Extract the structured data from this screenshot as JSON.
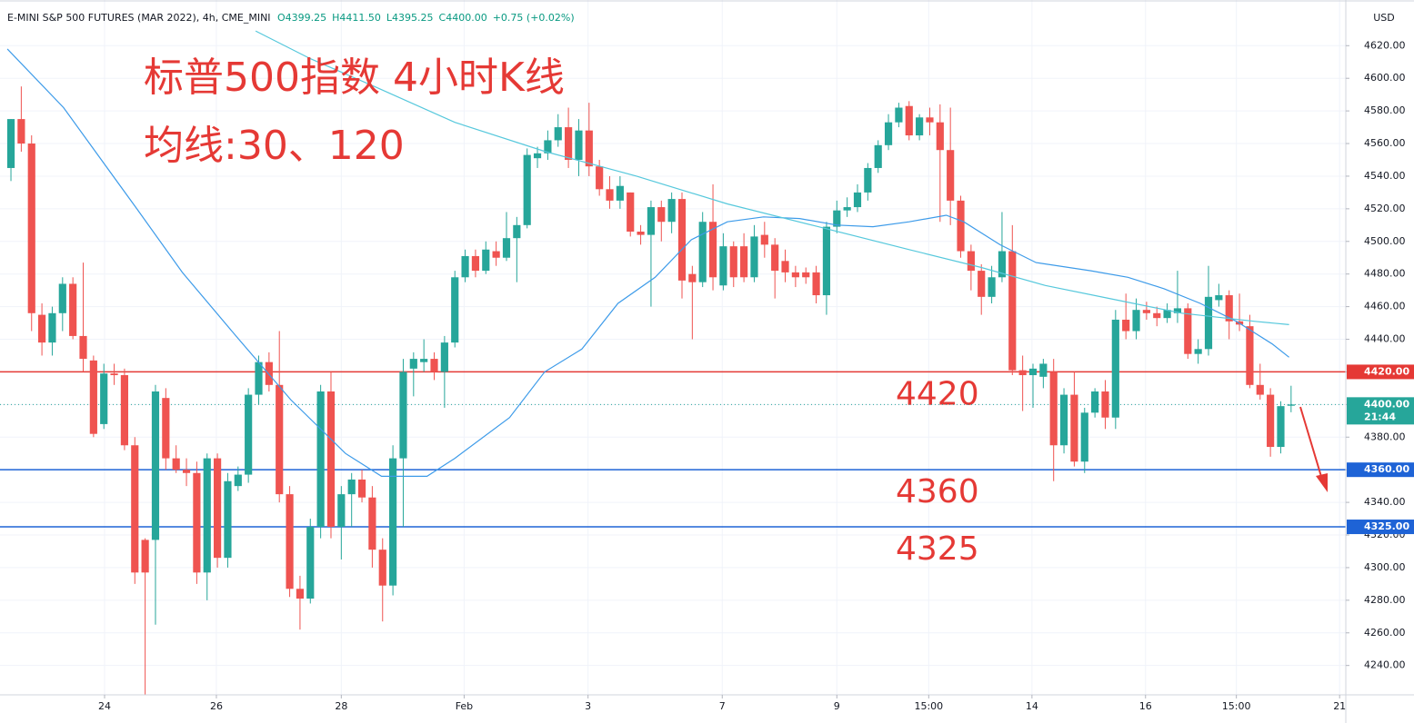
{
  "chart_data": {
    "type": "candlestick",
    "header": "E-MINI S&P 500 FUTURES (MAR 2022), 4h, CME_MINI",
    "header_ohlc": [
      "O4399.25",
      "H4411.50",
      "L4395.25",
      "C4400.00"
    ],
    "header_change": "+0.75 (+0.02%)",
    "title": "标普500指数 4小时K线",
    "subtitle": "均线:30、120",
    "currency": "USD",
    "up_color": "#26a69a",
    "down_color": "#ef5350",
    "open": [
      4545,
      4575,
      4560,
      4455,
      4438,
      4456,
      4474,
      4442,
      4427,
      4388,
      4419,
      4418,
      4375,
      4317,
      4317,
      4404,
      4367,
      4360,
      4358,
      4297,
      4367,
      4306,
      4350,
      4357,
      4406,
      4426,
      4412,
      4345,
      4287,
      4281,
      4325,
      4408,
      4325,
      4345,
      4354,
      4343,
      4311,
      4289,
      4367,
      4422,
      4426,
      4428,
      4420,
      4438,
      4478,
      4491,
      4482,
      4494,
      4490,
      4502,
      4510,
      4551,
      4554,
      4562,
      4570,
      4550,
      4568,
      4546,
      4532,
      4525,
      4530,
      4506,
      4504,
      4521,
      4512,
      4526,
      4480,
      4475,
      4512,
      4473,
      4497,
      4497,
      4478,
      4504,
      4498,
      4488,
      4481,
      4481,
      4481,
      4467,
      4509,
      4519,
      4521,
      4530,
      4545,
      4559,
      4573,
      4583,
      4565,
      4576,
      4573,
      4556,
      4525,
      4494,
      4482,
      4466,
      4478,
      4494,
      4421,
      4418,
      4417,
      4420,
      4375,
      4406,
      4365,
      4395,
      4408,
      4392,
      4452,
      4445,
      4458,
      4456,
      4453,
      4456,
      4459,
      4431,
      4434,
      4464,
      4467,
      4451,
      4448,
      4412,
      4406,
      4374,
      4399.25
    ],
    "high": [
      4575,
      4595,
      4565,
      4462,
      4460,
      4478,
      4478,
      4487,
      4430,
      4425,
      4425,
      4422,
      4380,
      4318,
      4412,
      4410,
      4375,
      4367,
      4365,
      4370,
      4370,
      4358,
      4362,
      4410,
      4430,
      4432,
      4445,
      4350,
      4295,
      4330,
      4412,
      4420,
      4350,
      4358,
      4360,
      4350,
      4318,
      4375,
      4428,
      4432,
      4440,
      4432,
      4442,
      4482,
      4495,
      4495,
      4500,
      4500,
      4518,
      4515,
      4557,
      4558,
      4568,
      4578,
      4582,
      4575,
      4585,
      4550,
      4540,
      4540,
      4530,
      4510,
      4525,
      4525,
      4530,
      4530,
      4485,
      4518,
      4535,
      4505,
      4500,
      4505,
      4510,
      4512,
      4502,
      4495,
      4485,
      4484,
      4485,
      4512,
      4525,
      4527,
      4535,
      4548,
      4562,
      4578,
      4585,
      4586,
      4578,
      4582,
      4584,
      4582,
      4528,
      4498,
      4486,
      4485,
      4518,
      4510,
      4430,
      4425,
      4428,
      4428,
      4410,
      4420,
      4398,
      4410,
      4415,
      4458,
      4468,
      4465,
      4463,
      4460,
      4462,
      4482,
      4462,
      4440,
      4485,
      4474,
      4470,
      4468,
      4455,
      4425,
      4410,
      4402,
      4411.5
    ],
    "low": [
      4537,
      4555,
      4445,
      4430,
      4430,
      4445,
      4440,
      4420,
      4380,
      4385,
      4412,
      4372,
      4290,
      4222,
      4265,
      4360,
      4358,
      4350,
      4290,
      4280,
      4300,
      4300,
      4347,
      4352,
      4400,
      4408,
      4340,
      4282,
      4262,
      4278,
      4318,
      4318,
      4305,
      4325,
      4340,
      4300,
      4267,
      4283,
      4325,
      4405,
      4420,
      4415,
      4398,
      4435,
      4475,
      4478,
      4480,
      4485,
      4488,
      4475,
      4508,
      4545,
      4550,
      4558,
      4545,
      4540,
      4540,
      4528,
      4520,
      4520,
      4503,
      4498,
      4460,
      4500,
      4505,
      4465,
      4440,
      4472,
      4470,
      4470,
      4472,
      4475,
      4475,
      4490,
      4465,
      4475,
      4472,
      4474,
      4462,
      4455,
      4505,
      4515,
      4518,
      4525,
      4542,
      4556,
      4570,
      4562,
      4562,
      4565,
      4512,
      4510,
      4490,
      4470,
      4455,
      4462,
      4475,
      4418,
      4396,
      4398,
      4410,
      4353,
      4370,
      4362,
      4358,
      4392,
      4385,
      4385,
      4440,
      4440,
      4452,
      4448,
      4450,
      4450,
      4428,
      4425,
      4430,
      4460,
      4440,
      4445,
      4410,
      4403,
      4368,
      4370,
      4395.25
    ],
    "close": [
      4575,
      4560,
      4456,
      4438,
      4456,
      4474,
      4442,
      4428,
      4382,
      4419,
      4418,
      4375,
      4297,
      4297,
      4408,
      4367,
      4360,
      4358,
      4297,
      4367,
      4306,
      4353,
      4357,
      4406,
      4426,
      4412,
      4345,
      4287,
      4281,
      4325,
      4408,
      4325,
      4345,
      4354,
      4343,
      4311,
      4289,
      4367,
      4420,
      4428,
      4428,
      4420,
      4438,
      4478,
      4491,
      4482,
      4495,
      4490,
      4502,
      4510,
      4553,
      4554,
      4562,
      4570,
      4550,
      4568,
      4546,
      4532,
      4525,
      4534,
      4506,
      4504,
      4521,
      4512,
      4526,
      4476,
      4475,
      4512,
      4478,
      4497,
      4478,
      4478,
      4503,
      4498,
      4482,
      4481,
      4478,
      4478,
      4467,
      4509,
      4519,
      4521,
      4530,
      4545,
      4559,
      4573,
      4582,
      4565,
      4576,
      4573,
      4556,
      4525,
      4494,
      4482,
      4466,
      4478,
      4494,
      4421,
      4418,
      4422,
      4425,
      4375,
      4406,
      4365,
      4395,
      4408,
      4392,
      4452,
      4445,
      4458,
      4456,
      4453,
      4458,
      4459,
      4431,
      4434,
      4466,
      4467,
      4451,
      4449,
      4412,
      4406,
      4374,
      4399,
      4400
    ],
    "series": [
      {
        "type": "line",
        "color": "#3d9be9",
        "x": [
          -0.35,
          5.1,
          12.2,
          16.6,
          21.8,
          27.1,
          32.4,
          35.9,
          40.3,
          43,
          48.3,
          51.7,
          55.3,
          58.8,
          62.4,
          65.9,
          69.4,
          72.9,
          76.4,
          80,
          83.5,
          87,
          90.6,
          92.3,
          95.8,
          99.3,
          104.6,
          108.2,
          111.7,
          115.2,
          118.7,
          122.2,
          123.8
        ],
        "values": [
          4618,
          4582,
          4520,
          4481,
          4442,
          4403,
          4370,
          4356,
          4356,
          4367,
          4392,
          4420,
          4434,
          4462,
          4478,
          4501,
          4512,
          4515,
          4514,
          4510,
          4509,
          4512,
          4516,
          4512,
          4498,
          4487,
          4482,
          4478,
          4471,
          4462,
          4451,
          4437,
          4429
        ]
      },
      {
        "type": "line",
        "color": "#56c8dc",
        "x": [
          23.7,
          29,
          35.2,
          43,
          51.8,
          60.6,
          69.4,
          78.2,
          87,
          94,
          100.2,
          106.4,
          113.4,
          120.5,
          123.8
        ],
        "values": [
          4629,
          4612,
          4595,
          4573,
          4555,
          4540,
          4523,
          4509,
          4495,
          4484,
          4473,
          4465,
          4456,
          4451,
          4449
        ]
      }
    ],
    "levels": [
      {
        "value": 4420,
        "label": "4420.00",
        "color": "#e53935"
      },
      {
        "value": 4360,
        "label": "4360.00",
        "color": "#1e63d6"
      },
      {
        "value": 4325,
        "label": "4325.00",
        "color": "#1e63d6"
      }
    ],
    "last_price": {
      "value": 4400,
      "label": "4400.00"
    },
    "countdown": "21:44",
    "xlim": [
      -1.06,
      129.3
    ],
    "ylim": [
      4222,
      4648
    ],
    "xticks": [
      {
        "value": 9.07,
        "label": "24"
      },
      {
        "value": 19.9,
        "label": "26"
      },
      {
        "value": 32,
        "label": "28"
      },
      {
        "value": 43.9,
        "label": "Feb"
      },
      {
        "value": 55.9,
        "label": "3"
      },
      {
        "value": 68.9,
        "label": "7"
      },
      {
        "value": 80,
        "label": "9"
      },
      {
        "value": 88.9,
        "label": "15:00"
      },
      {
        "value": 98.9,
        "label": "14"
      },
      {
        "value": 109.9,
        "label": "16"
      },
      {
        "value": 118.7,
        "label": "15:00"
      },
      {
        "value": 128.7,
        "label": "21"
      }
    ],
    "yticks": [
      {
        "value": 4240,
        "label": "4240.00"
      },
      {
        "value": 4260,
        "label": "4260.00"
      },
      {
        "value": 4280,
        "label": "4280.00"
      },
      {
        "value": 4300,
        "label": "4300.00"
      },
      {
        "value": 4320,
        "label": "4320.00"
      },
      {
        "value": 4340,
        "label": "4340.00"
      },
      {
        "value": 4360,
        "label": "4360.00"
      },
      {
        "value": 4380,
        "label": "4380.00"
      },
      {
        "value": 4400,
        "label": "4400.00"
      },
      {
        "value": 4420,
        "label": "4420.00"
      },
      {
        "value": 4440,
        "label": "4440.00"
      },
      {
        "value": 4460,
        "label": "4460.00"
      },
      {
        "value": 4480,
        "label": "4480.00"
      },
      {
        "value": 4500,
        "label": "4500.00"
      },
      {
        "value": 4520,
        "label": "4520.00"
      },
      {
        "value": 4540,
        "label": "4540.00"
      },
      {
        "value": 4560,
        "label": "4560.00"
      },
      {
        "value": 4580,
        "label": "4580.00"
      },
      {
        "value": 4600,
        "label": "4600.00"
      },
      {
        "value": 4620,
        "label": "4620.00"
      }
    ],
    "grid": true
  }
}
